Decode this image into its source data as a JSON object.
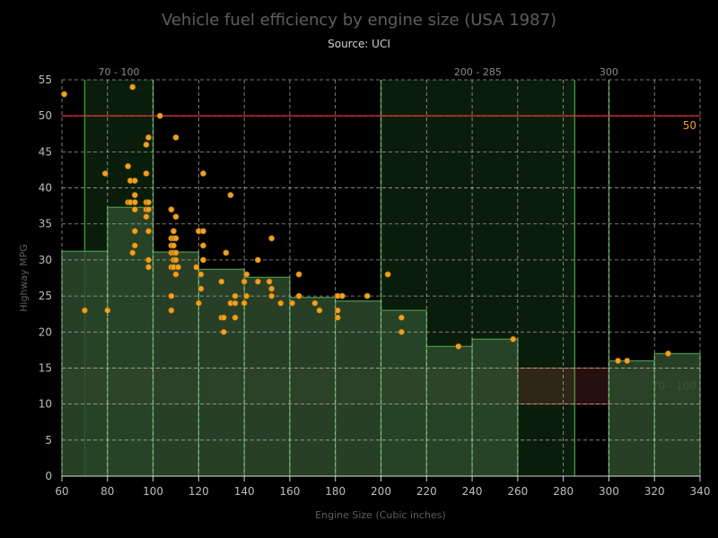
{
  "chart_data": {
    "type": "scatter",
    "title": "Vehicle fuel efficiency by engine size (USA 1987)",
    "subtitle": "Source: UCI",
    "xlabel": "Engine Size (Cubic inches)",
    "ylabel": "Highway MPG",
    "xlim": [
      60,
      340
    ],
    "ylim": [
      0,
      55
    ],
    "x_ticks": [
      60,
      80,
      100,
      120,
      140,
      160,
      180,
      200,
      220,
      240,
      260,
      280,
      300,
      320,
      340
    ],
    "y_ticks": [
      0,
      5,
      10,
      15,
      20,
      25,
      30,
      35,
      40,
      45,
      50,
      55
    ],
    "grid": true,
    "colors": {
      "background": "#000000",
      "points": "#f0a020",
      "histogram_fill": "#2d4a2d",
      "histogram_edge": "#4c9a4c",
      "plot_band_line": "#3a8a3a",
      "plot_line_50": "#ff3333",
      "plot_band_y": "#ff6666",
      "grid": "#d0d0d0"
    },
    "histogram": [
      {
        "x0": 60,
        "x1": 80,
        "value": 31.2
      },
      {
        "x0": 80,
        "x1": 100,
        "value": 37.3
      },
      {
        "x0": 100,
        "x1": 120,
        "value": 31.1
      },
      {
        "x0": 120,
        "x1": 140,
        "value": 28.7
      },
      {
        "x0": 140,
        "x1": 160,
        "value": 27.6
      },
      {
        "x0": 160,
        "x1": 180,
        "value": 24.8
      },
      {
        "x0": 180,
        "x1": 200,
        "value": 24.3
      },
      {
        "x0": 200,
        "x1": 220,
        "value": 23.0
      },
      {
        "x0": 220,
        "x1": 240,
        "value": 18.0
      },
      {
        "x0": 240,
        "x1": 260,
        "value": 19.0
      },
      {
        "x0": 260,
        "x1": 280,
        "value": 0
      },
      {
        "x0": 280,
        "x1": 300,
        "value": 0
      },
      {
        "x0": 300,
        "x1": 320,
        "value": 16.0
      },
      {
        "x0": 320,
        "x1": 340,
        "value": 17.0
      }
    ],
    "x_plot_bands": [
      {
        "from": 70,
        "to": 100,
        "label": "70 - 100"
      },
      {
        "from": 200,
        "to": 285,
        "label": "200 - 285"
      },
      {
        "from": 300,
        "to": 300,
        "label": "300"
      }
    ],
    "y_plot_lines": [
      {
        "value": 50,
        "label": "50"
      }
    ],
    "y_plot_bands": [
      {
        "from": 10,
        "to": 15,
        "label": "70 - 100"
      }
    ],
    "points": [
      [
        61,
        53
      ],
      [
        70,
        23
      ],
      [
        79,
        42
      ],
      [
        80,
        23
      ],
      [
        89,
        43
      ],
      [
        89,
        38
      ],
      [
        90,
        41
      ],
      [
        90,
        38
      ],
      [
        91,
        31
      ],
      [
        91,
        54
      ],
      [
        92,
        41
      ],
      [
        92,
        39
      ],
      [
        92,
        37
      ],
      [
        92,
        34
      ],
      [
        92,
        32
      ],
      [
        92,
        38
      ],
      [
        97,
        46
      ],
      [
        97,
        42
      ],
      [
        97,
        38
      ],
      [
        97,
        37
      ],
      [
        97,
        36
      ],
      [
        98,
        47
      ],
      [
        98,
        38
      ],
      [
        98,
        37
      ],
      [
        98,
        34
      ],
      [
        98,
        30
      ],
      [
        98,
        29
      ],
      [
        103,
        50
      ],
      [
        108,
        37
      ],
      [
        108,
        33
      ],
      [
        108,
        32
      ],
      [
        108,
        31
      ],
      [
        108,
        29
      ],
      [
        108,
        25
      ],
      [
        108,
        23
      ],
      [
        109,
        34
      ],
      [
        109,
        33
      ],
      [
        109,
        32
      ],
      [
        109,
        31
      ],
      [
        109,
        30
      ],
      [
        109,
        29
      ],
      [
        110,
        47
      ],
      [
        110,
        36
      ],
      [
        110,
        33
      ],
      [
        110,
        31
      ],
      [
        110,
        30
      ],
      [
        110,
        28
      ],
      [
        111,
        29
      ],
      [
        119,
        29
      ],
      [
        120,
        34
      ],
      [
        120,
        24
      ],
      [
        121,
        26
      ],
      [
        121,
        28
      ],
      [
        122,
        42
      ],
      [
        122,
        34
      ],
      [
        122,
        32
      ],
      [
        122,
        30
      ],
      [
        130,
        27
      ],
      [
        130,
        22
      ],
      [
        131,
        20
      ],
      [
        131,
        22
      ],
      [
        132,
        31
      ],
      [
        134,
        24
      ],
      [
        134,
        39
      ],
      [
        136,
        25
      ],
      [
        136,
        24
      ],
      [
        136,
        22
      ],
      [
        140,
        24
      ],
      [
        140,
        27
      ],
      [
        141,
        28
      ],
      [
        141,
        25
      ],
      [
        146,
        30
      ],
      [
        146,
        27
      ],
      [
        151,
        27
      ],
      [
        152,
        33
      ],
      [
        152,
        25
      ],
      [
        152,
        26
      ],
      [
        156,
        24
      ],
      [
        161,
        24
      ],
      [
        164,
        28
      ],
      [
        164,
        25
      ],
      [
        171,
        24
      ],
      [
        173,
        23
      ],
      [
        181,
        25
      ],
      [
        181,
        23
      ],
      [
        181,
        22
      ],
      [
        183,
        25
      ],
      [
        194,
        25
      ],
      [
        203,
        28
      ],
      [
        209,
        22
      ],
      [
        209,
        20
      ],
      [
        234,
        18
      ],
      [
        258,
        19
      ],
      [
        304,
        16
      ],
      [
        308,
        16
      ],
      [
        326,
        17
      ]
    ]
  }
}
